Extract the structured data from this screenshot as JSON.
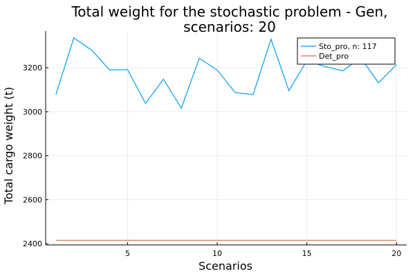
{
  "chart_data": {
    "type": "line",
    "title": "Total weight for the stochastic problem - Gen,\nscenarios: 20",
    "xlabel": "Scenarios",
    "ylabel": "Total cargo weight (t)",
    "xlim": [
      0.43,
      20.57
    ],
    "ylim": [
      2394,
      3367
    ],
    "xticks": [
      5,
      10,
      15,
      20
    ],
    "yticks": [
      2400,
      2600,
      2800,
      3000,
      3200
    ],
    "grid": true,
    "legend_position": "top-right",
    "x": [
      1,
      2,
      3,
      4,
      5,
      6,
      7,
      8,
      9,
      10,
      11,
      12,
      13,
      14,
      15,
      16,
      17,
      18,
      19,
      20
    ],
    "series": [
      {
        "name": "Sto_pro, n: 117",
        "color": "#009AF9",
        "values": [
          3078,
          3336,
          3280,
          3190,
          3192,
          3038,
          3148,
          3016,
          3243,
          3190,
          3087,
          3078,
          3330,
          3096,
          3232,
          3206,
          3186,
          3246,
          3132,
          3214
        ]
      },
      {
        "name": "Det_pro",
        "color": "#E26F46",
        "values": [
          2415,
          2415,
          2415,
          2415,
          2415,
          2415,
          2415,
          2415,
          2415,
          2415,
          2415,
          2415,
          2415,
          2415,
          2415,
          2415,
          2415,
          2415,
          2415,
          2415
        ]
      }
    ]
  }
}
